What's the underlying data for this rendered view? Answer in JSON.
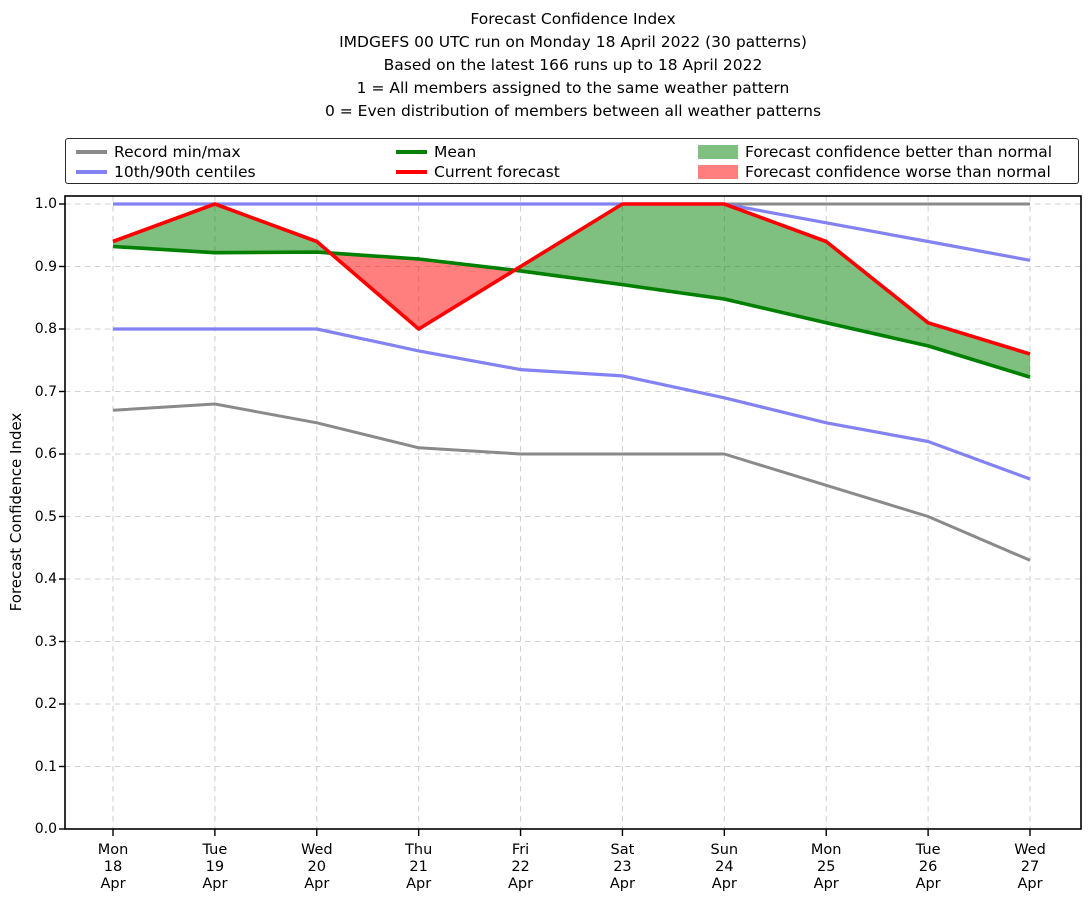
{
  "title": {
    "lines": [
      "Forecast Confidence Index",
      "IMDGEFS 00 UTC run on Monday 18 April 2022 (30 patterns)",
      "Based on the latest 166 runs up to 18 April 2022",
      "1 = All members assigned to the same weather pattern",
      "0 = Even distribution of members between all weather patterns"
    ]
  },
  "legend": {
    "items": [
      {
        "label": "Record min/max",
        "type": "line",
        "color": "#8a8a8a"
      },
      {
        "label": "10th/90th centiles",
        "type": "line",
        "color": "#8282f2"
      },
      {
        "label": "Mean",
        "type": "line",
        "color": "#008000"
      },
      {
        "label": "Current forecast",
        "type": "line",
        "color": "#ff0000"
      },
      {
        "label": "Forecast confidence better than normal",
        "type": "patch",
        "color": "rgba(0,128,0,0.5)"
      },
      {
        "label": "Forecast confidence worse than normal",
        "type": "patch",
        "color": "rgba(255,0,0,0.5)"
      }
    ]
  },
  "chart_data": {
    "type": "line",
    "title": "Forecast Confidence Index",
    "xlabel": "",
    "ylabel": "Forecast Confidence Index",
    "ylim": [
      0.0,
      1.0
    ],
    "yticks": [
      0.0,
      0.1,
      0.2,
      0.3,
      0.4,
      0.5,
      0.6,
      0.7,
      0.8,
      0.9,
      1.0
    ],
    "grid": "dashed",
    "legend_position": "top",
    "categories": [
      [
        "Mon",
        "18",
        "Apr"
      ],
      [
        "Tue",
        "19",
        "Apr"
      ],
      [
        "Wed",
        "20",
        "Apr"
      ],
      [
        "Thu",
        "21",
        "Apr"
      ],
      [
        "Fri",
        "22",
        "Apr"
      ],
      [
        "Sat",
        "23",
        "Apr"
      ],
      [
        "Sun",
        "24",
        "Apr"
      ],
      [
        "Mon",
        "25",
        "Apr"
      ],
      [
        "Tue",
        "26",
        "Apr"
      ],
      [
        "Wed",
        "27",
        "Apr"
      ]
    ],
    "series": [
      {
        "name": "Record max",
        "color": "#8a8a8a",
        "width": 3.0,
        "values": [
          1.0,
          1.0,
          1.0,
          1.0,
          1.0,
          1.0,
          1.0,
          1.0,
          1.0,
          1.0
        ]
      },
      {
        "name": "Record min",
        "color": "#8a8a8a",
        "width": 3.0,
        "values": [
          0.67,
          0.68,
          0.65,
          0.61,
          0.6,
          0.6,
          0.6,
          0.55,
          0.5,
          0.43
        ]
      },
      {
        "name": "90th centile",
        "color": "#8282f2",
        "width": 3.2,
        "values": [
          1.0,
          1.0,
          1.0,
          1.0,
          1.0,
          1.0,
          1.0,
          0.97,
          0.94,
          0.91
        ]
      },
      {
        "name": "10th centile",
        "color": "#8282f2",
        "width": 3.2,
        "values": [
          0.8,
          0.8,
          0.8,
          0.765,
          0.735,
          0.725,
          0.69,
          0.65,
          0.62,
          0.56
        ]
      },
      {
        "name": "Mean",
        "color": "#008000",
        "width": 3.6,
        "values": [
          0.932,
          0.922,
          0.923,
          0.912,
          0.893,
          0.871,
          0.848,
          0.81,
          0.773,
          0.723
        ]
      },
      {
        "name": "Current forecast",
        "color": "#ff0000",
        "width": 3.6,
        "values": [
          0.94,
          1.0,
          0.94,
          0.8,
          0.9,
          1.0,
          1.0,
          0.94,
          0.81,
          0.76
        ]
      }
    ],
    "fills": {
      "between": [
        "Current forecast",
        "Mean"
      ],
      "better_color": "rgba(0,128,0,0.5)",
      "worse_color": "rgba(255,0,0,0.5)",
      "better_label": "Forecast confidence better than normal",
      "worse_label": "Forecast confidence worse than normal"
    }
  }
}
